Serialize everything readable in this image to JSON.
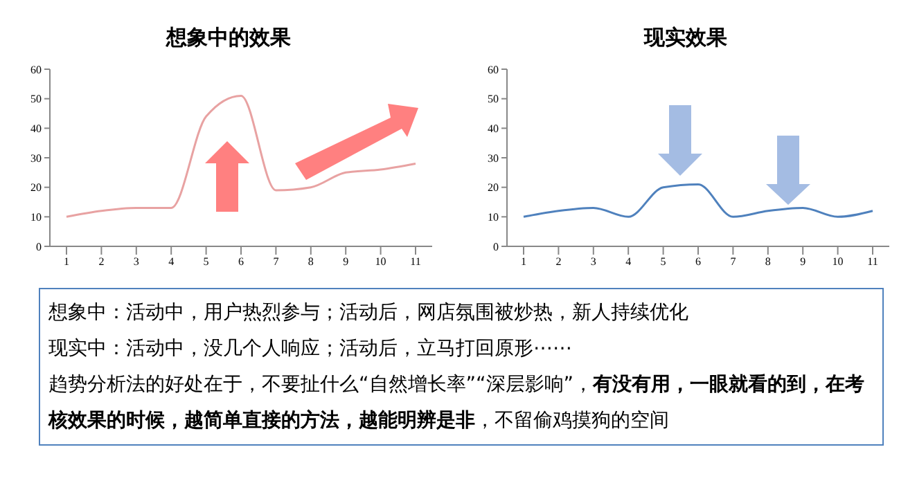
{
  "chart_data": [
    {
      "type": "line",
      "title": "想象中的效果",
      "categories": [
        "1",
        "2",
        "3",
        "4",
        "5",
        "6",
        "7",
        "8",
        "9",
        "10",
        "11"
      ],
      "series": [
        {
          "color": "#e8a2a2",
          "values": [
            10,
            12,
            13,
            13,
            44,
            51,
            19,
            20,
            25,
            26,
            28
          ]
        }
      ],
      "ylim": [
        0,
        60
      ],
      "yticks": [
        0,
        10,
        20,
        30,
        40,
        50,
        60
      ],
      "marker": "none",
      "line_style": "solid"
    },
    {
      "type": "line",
      "title": "现实效果",
      "categories": [
        "1",
        "2",
        "3",
        "4",
        "5",
        "6",
        "7",
        "8",
        "9",
        "10",
        "11"
      ],
      "series": [
        {
          "color": "#4f81bd",
          "values": [
            10,
            12,
            13,
            10,
            20,
            21,
            10,
            12,
            13,
            10,
            12
          ]
        }
      ],
      "ylim": [
        0,
        60
      ],
      "yticks": [
        0,
        10,
        20,
        30,
        40,
        50,
        60
      ],
      "marker": "none",
      "line_style": "solid"
    },
    {
      "type": "other",
      "annotations": [
        "想象中：活动中，用户热烈参与；活动后，网店氛围被炒热，新人持续优化",
        "现实中：活动中，没几个人响应；活动后，立马打回原形⋯⋯",
        "趋势分析法的好处在于，不要扯什么“自然增长率”“深层影响”，",
        "有没有用，一眼就看的到，在考核效果的时候，越简单直接的方法，越能明辨是非",
        "，不留偷鸡摸狗的空间"
      ]
    }
  ]
}
